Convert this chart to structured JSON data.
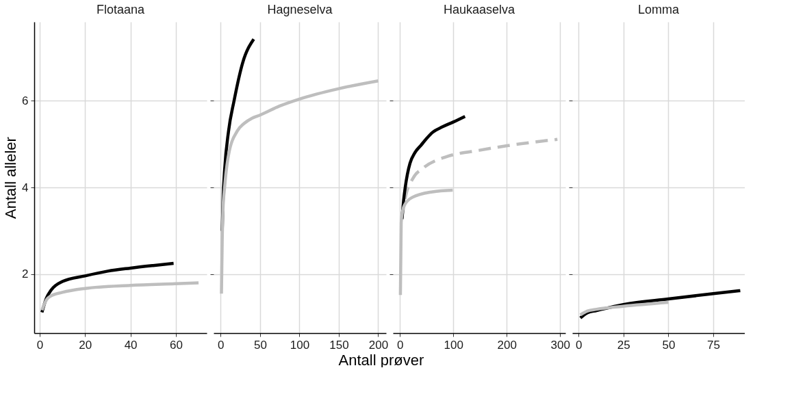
{
  "chart_data": [
    {
      "type": "line",
      "title": "Flotaana",
      "ylabel": "Antall alleler",
      "xlim": [
        -2.4,
        73.6
      ],
      "xticks": [
        0,
        20,
        40,
        60
      ],
      "ylim": [
        0.64,
        7.82
      ],
      "yticks": [
        2,
        4,
        6
      ],
      "grid": true,
      "line_style": "solid",
      "series": [
        {
          "color": "#000000",
          "x": [
            1,
            3,
            5,
            10,
            20,
            30,
            40,
            50,
            59
          ],
          "values": [
            1.12,
            1.45,
            1.63,
            1.83,
            1.96,
            2.07,
            2.14,
            2.2,
            2.25
          ]
        },
        {
          "color": "#bebebe",
          "x": [
            1,
            3,
            5,
            10,
            20,
            40,
            60,
            70
          ],
          "values": [
            1.17,
            1.41,
            1.5,
            1.58,
            1.67,
            1.74,
            1.78,
            1.8
          ]
        }
      ]
    },
    {
      "type": "line",
      "title": "Hagneselva",
      "xlabel": "Antall prøver",
      "xlim": [
        -9,
        210
      ],
      "xticks": [
        0,
        50,
        100,
        150,
        200
      ],
      "ylim": [
        0.64,
        7.82
      ],
      "yticks": [
        2,
        4,
        6
      ],
      "grid": true,
      "tick_labels": "x",
      "line_style": "solid",
      "series": [
        {
          "color": "#000000",
          "x": [
            2,
            3,
            5,
            10,
            17,
            28,
            42
          ],
          "values": [
            3.0,
            3.7,
            4.4,
            5.3,
            6.0,
            6.88,
            7.42
          ]
        },
        {
          "color": "#bebebe",
          "x": [
            1,
            2,
            3,
            5,
            10,
            21,
            30,
            40,
            50,
            75,
            100,
            150,
            200
          ],
          "values": [
            1.55,
            2.8,
            3.5,
            4.0,
            4.75,
            5.3,
            5.48,
            5.6,
            5.67,
            5.88,
            6.04,
            6.28,
            6.46
          ]
        }
      ]
    },
    {
      "type": "line",
      "title": "Haukaaselva",
      "xlim": [
        -13,
        310
      ],
      "xticks": [
        0,
        100,
        200,
        300
      ],
      "ylim": [
        0.64,
        7.82
      ],
      "yticks": [
        2,
        4,
        6
      ],
      "grid": true,
      "tick_labels": "x",
      "line_style": "solid",
      "series": [
        {
          "color": "#bebebe",
          "line_style": "dashed",
          "x": [
            4,
            10,
            25,
            44,
            90,
            145,
            199,
            295
          ],
          "values": [
            3.3,
            3.75,
            4.22,
            4.45,
            4.72,
            4.85,
            4.96,
            5.11
          ]
        },
        {
          "color": "#000000",
          "x": [
            4,
            7,
            10,
            14,
            19,
            28,
            40,
            50,
            61,
            80,
            100,
            122
          ],
          "values": [
            3.27,
            3.7,
            4.0,
            4.3,
            4.56,
            4.8,
            4.98,
            5.13,
            5.27,
            5.4,
            5.51,
            5.64
          ]
        },
        {
          "color": "#bebebe",
          "x": [
            1,
            2.5,
            5,
            9,
            23,
            61,
            99
          ],
          "values": [
            1.52,
            3.19,
            3.45,
            3.6,
            3.77,
            3.9,
            3.94
          ]
        }
      ]
    },
    {
      "type": "line",
      "title": "Lomma",
      "xlim": [
        -3.5,
        92.5
      ],
      "xticks": [
        0,
        25,
        50,
        75
      ],
      "ylim": [
        0.64,
        7.82
      ],
      "yticks": [
        2,
        4,
        6
      ],
      "grid": true,
      "tick_labels": "x",
      "line_style": "solid",
      "series": [
        {
          "color": "#000000",
          "x": [
            1,
            5,
            10,
            25,
            50,
            75,
            90
          ],
          "values": [
            0.99,
            1.11,
            1.16,
            1.3,
            1.43,
            1.55,
            1.62
          ]
        },
        {
          "color": "#bebebe",
          "x": [
            1,
            5,
            10,
            25,
            50
          ],
          "values": [
            1.06,
            1.15,
            1.19,
            1.26,
            1.35
          ]
        }
      ]
    }
  ]
}
